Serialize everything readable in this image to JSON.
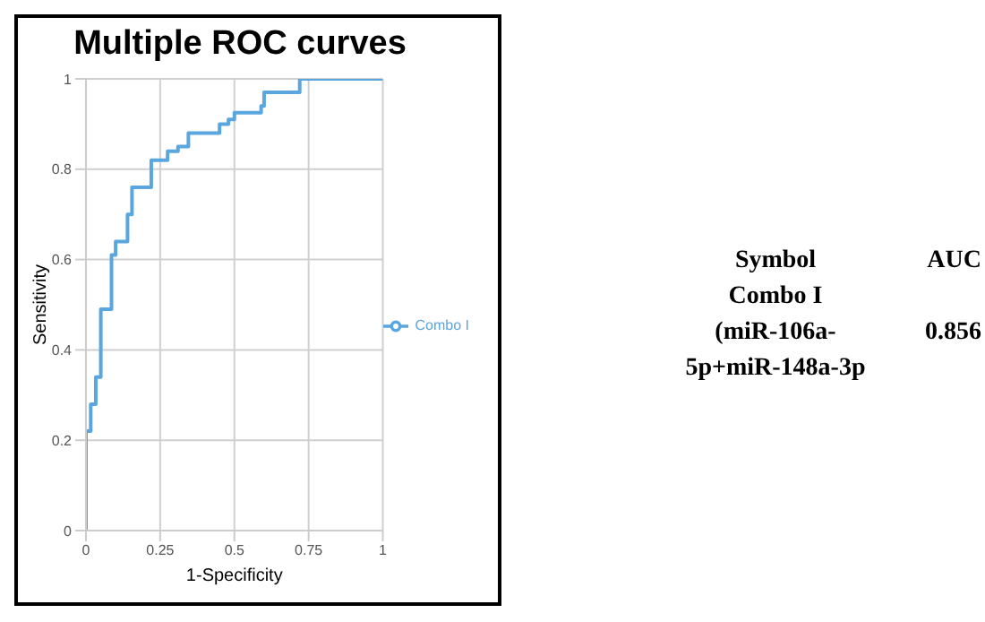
{
  "chart_data": {
    "type": "line",
    "title": "Multiple ROC curves",
    "xlabel": "1-Specificity",
    "ylabel": "Sensitivity",
    "series": [
      {
        "name": "Combo I",
        "color": "#5aa6de",
        "x": [
          0,
          0,
          0.016,
          0.016,
          0.033,
          0.033,
          0.05,
          0.05,
          0.086,
          0.086,
          0.1,
          0.1,
          0.14,
          0.14,
          0.155,
          0.155,
          0.22,
          0.22,
          0.275,
          0.275,
          0.31,
          0.31,
          0.345,
          0.345,
          0.45,
          0.45,
          0.48,
          0.48,
          0.5,
          0.5,
          0.59,
          0.59,
          0.6,
          0.6,
          0.72,
          0.72,
          1
        ],
        "values": [
          0,
          0.22,
          0.22,
          0.28,
          0.28,
          0.34,
          0.34,
          0.49,
          0.49,
          0.61,
          0.61,
          0.64,
          0.64,
          0.7,
          0.7,
          0.76,
          0.76,
          0.82,
          0.82,
          0.84,
          0.84,
          0.85,
          0.85,
          0.88,
          0.88,
          0.9,
          0.9,
          0.91,
          0.91,
          0.925,
          0.925,
          0.94,
          0.94,
          0.97,
          0.97,
          1,
          1
        ]
      }
    ],
    "xlim": [
      0,
      1
    ],
    "xticks": [
      0,
      0.25,
      0.5,
      0.75,
      1
    ],
    "ylim": [
      0,
      1
    ],
    "yticks": [
      0,
      0.2,
      0.4,
      0.6,
      0.8,
      1
    ],
    "grid": true,
    "legend": "right",
    "marker": "none",
    "line_style": "solid",
    "annotations": [
      "Symbol",
      "AUC",
      "Combo I",
      "(miR-106a-5p+miR-148a-3p",
      "0.856"
    ]
  }
}
